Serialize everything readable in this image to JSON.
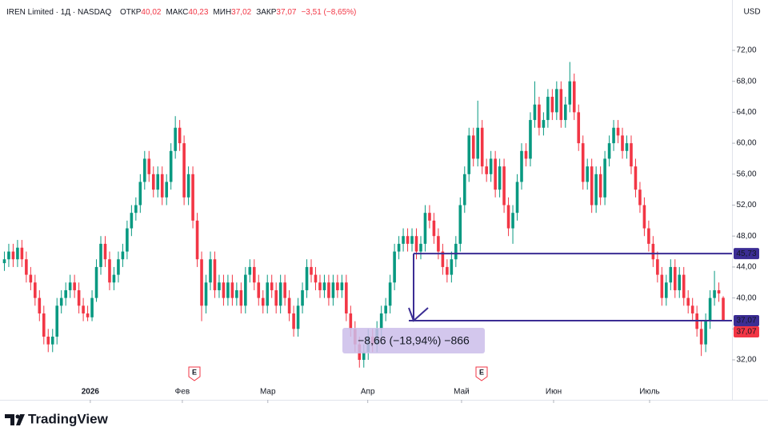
{
  "chart_data": {
    "type": "candlestick",
    "header": {
      "symbol": "IREN Limited · 1Д · NASDAQ",
      "fields": [
        {
          "label": "ОТКР",
          "value": "40,02"
        },
        {
          "label": "МАКС",
          "value": "40,23"
        },
        {
          "label": "МИН",
          "value": "37,02"
        },
        {
          "label": "ЗАКР",
          "value": "37,07"
        }
      ],
      "change": "−3,51 (−8,65%)"
    },
    "currency": "USD",
    "up_color": "#089981",
    "down_color": "#f23645",
    "ylim": [
      29.11,
      78.51
    ],
    "yticks": [
      {
        "value": 32,
        "label": "32,00"
      },
      {
        "value": 36,
        "label": "36,00"
      },
      {
        "value": 40,
        "label": "40,00"
      },
      {
        "value": 44,
        "label": "44,00"
      },
      {
        "value": 48,
        "label": "48,00"
      },
      {
        "value": 52,
        "label": "52,00"
      },
      {
        "value": 56,
        "label": "56,00"
      },
      {
        "value": 60,
        "label": "60,00"
      },
      {
        "value": 64,
        "label": "64,00"
      },
      {
        "value": 68,
        "label": "68,00"
      },
      {
        "value": 72,
        "label": "72,00"
      }
    ],
    "xlim": [
      -1,
      166
    ],
    "xticks": [
      {
        "value": 19.6,
        "label": "2026"
      },
      {
        "value": 40.6,
        "label": "Фев"
      },
      {
        "value": 60.1,
        "label": "Мар"
      },
      {
        "value": 82.9,
        "label": "Апр"
      },
      {
        "value": 104.3,
        "label": "Май"
      },
      {
        "value": 125.3,
        "label": "Июн"
      },
      {
        "value": 147.2,
        "label": "Июль"
      }
    ],
    "grid": false,
    "ohlc": [
      [
        44.5,
        46,
        43.5,
        45
      ],
      [
        45,
        47,
        44,
        46
      ],
      [
        46,
        47,
        44,
        45
      ],
      [
        45,
        47.5,
        44,
        46.5
      ],
      [
        46.5,
        47.5,
        44,
        45
      ],
      [
        45,
        46,
        42,
        43
      ],
      [
        43,
        44,
        41,
        42
      ],
      [
        42,
        43,
        39,
        40
      ],
      [
        40,
        41,
        37,
        38
      ],
      [
        38,
        39,
        34,
        35
      ],
      [
        35,
        36,
        33,
        34
      ],
      [
        34,
        36,
        33,
        35
      ],
      [
        35,
        40,
        34,
        39
      ],
      [
        39,
        41,
        38,
        40
      ],
      [
        40,
        42,
        39,
        41
      ],
      [
        41,
        43,
        40,
        42
      ],
      [
        42,
        43,
        40,
        41
      ],
      [
        41,
        42,
        38,
        39
      ],
      [
        39,
        40,
        37,
        38
      ],
      [
        38,
        39,
        37,
        37.5
      ],
      [
        37.5,
        41,
        37,
        40
      ],
      [
        40,
        45,
        39.5,
        44
      ],
      [
        44,
        48,
        43,
        47
      ],
      [
        47,
        48,
        44,
        45
      ],
      [
        45,
        46,
        41,
        42
      ],
      [
        42,
        44,
        41,
        43
      ],
      [
        43,
        46,
        42,
        45
      ],
      [
        45,
        47,
        44,
        46
      ],
      [
        46,
        50,
        45,
        49
      ],
      [
        49,
        52,
        48,
        51
      ],
      [
        51,
        53,
        50,
        52
      ],
      [
        52,
        56,
        51,
        55
      ],
      [
        55,
        59,
        54,
        58
      ],
      [
        58,
        59,
        55,
        56
      ],
      [
        56,
        57,
        53,
        54
      ],
      [
        54,
        57,
        53,
        56
      ],
      [
        56,
        57,
        52,
        53
      ],
      [
        53,
        56,
        52,
        55
      ],
      [
        55,
        60,
        54,
        59
      ],
      [
        59,
        63.5,
        58,
        62
      ],
      [
        62,
        63,
        59,
        60
      ],
      [
        60,
        61,
        52,
        53
      ],
      [
        53,
        57,
        52,
        56
      ],
      [
        56,
        57,
        49,
        50
      ],
      [
        50,
        51,
        44,
        45
      ],
      [
        45,
        46,
        37,
        39
      ],
      [
        39,
        43,
        38,
        42
      ],
      [
        42,
        46,
        41,
        45
      ],
      [
        45,
        46,
        40,
        41
      ],
      [
        41,
        43,
        40,
        42
      ],
      [
        42,
        43,
        39,
        40
      ],
      [
        40,
        43,
        39,
        42
      ],
      [
        42,
        43,
        39,
        40
      ],
      [
        40,
        42,
        39,
        41
      ],
      [
        41,
        42,
        38,
        39
      ],
      [
        39,
        44,
        38,
        43
      ],
      [
        43,
        45,
        42,
        44
      ],
      [
        44,
        45,
        41,
        42
      ],
      [
        42,
        43,
        39,
        40
      ],
      [
        40,
        41,
        38,
        39
      ],
      [
        39,
        43,
        38,
        42
      ],
      [
        42,
        43,
        40,
        41
      ],
      [
        41,
        42,
        38,
        39
      ],
      [
        39,
        43,
        38,
        42
      ],
      [
        42,
        43,
        39,
        40
      ],
      [
        40,
        41,
        37,
        38
      ],
      [
        38,
        39,
        35,
        36
      ],
      [
        36,
        40,
        35,
        39
      ],
      [
        39,
        42,
        38,
        41
      ],
      [
        41,
        45,
        40,
        44
      ],
      [
        44,
        45,
        42,
        43
      ],
      [
        43,
        44,
        41,
        42
      ],
      [
        42,
        43,
        40,
        41
      ],
      [
        41,
        43,
        40,
        42
      ],
      [
        42,
        43,
        39,
        40
      ],
      [
        40,
        43,
        39,
        42
      ],
      [
        42,
        43,
        40,
        41
      ],
      [
        41,
        43,
        40,
        42
      ],
      [
        42,
        43,
        37,
        38
      ],
      [
        38,
        39,
        35,
        36
      ],
      [
        36,
        37,
        33,
        34
      ],
      [
        34,
        35,
        31,
        32
      ],
      [
        32,
        34,
        31,
        33
      ],
      [
        33,
        36,
        32,
        35
      ],
      [
        35,
        36,
        33,
        34
      ],
      [
        34,
        37,
        33,
        36
      ],
      [
        36,
        39,
        35,
        38
      ],
      [
        38,
        40,
        37,
        39
      ],
      [
        39,
        43,
        38,
        42
      ],
      [
        42,
        47,
        41,
        46
      ],
      [
        46,
        48,
        45,
        47
      ],
      [
        47,
        49,
        46,
        48
      ],
      [
        48,
        49,
        46,
        47
      ],
      [
        47,
        49,
        46,
        48
      ],
      [
        48,
        49,
        45,
        46
      ],
      [
        46,
        48,
        45,
        47
      ],
      [
        47,
        52,
        46,
        51
      ],
      [
        51,
        52,
        49,
        50
      ],
      [
        50,
        51,
        47,
        48
      ],
      [
        48,
        49,
        45,
        46
      ],
      [
        46,
        47,
        43,
        44
      ],
      [
        44,
        45,
        42,
        43
      ],
      [
        43,
        46,
        42,
        45
      ],
      [
        45,
        48,
        44,
        47
      ],
      [
        47,
        53,
        46,
        52
      ],
      [
        52,
        57,
        51,
        56
      ],
      [
        56,
        62,
        55,
        61
      ],
      [
        61,
        62,
        57,
        58
      ],
      [
        58,
        65.5,
        57,
        62
      ],
      [
        62,
        63,
        56,
        57
      ],
      [
        57,
        58,
        55,
        56
      ],
      [
        56,
        59,
        55,
        58
      ],
      [
        58,
        59,
        53,
        54
      ],
      [
        54,
        58,
        53,
        57
      ],
      [
        57,
        58,
        51,
        52
      ],
      [
        52,
        53,
        48,
        49
      ],
      [
        49,
        52,
        47,
        51
      ],
      [
        51,
        56,
        50,
        55
      ],
      [
        55,
        60,
        54,
        59
      ],
      [
        59,
        60,
        57,
        58
      ],
      [
        58,
        64,
        57,
        63
      ],
      [
        63,
        68,
        62,
        65
      ],
      [
        65,
        66,
        61,
        62
      ],
      [
        62,
        64,
        61,
        63
      ],
      [
        63,
        67,
        62,
        66
      ],
      [
        66,
        67,
        63,
        64
      ],
      [
        64,
        68,
        63,
        67
      ],
      [
        67,
        68,
        62,
        63
      ],
      [
        63,
        66,
        62,
        65
      ],
      [
        65,
        70.5,
        64,
        68
      ],
      [
        68,
        69,
        63,
        64
      ],
      [
        64,
        65,
        59,
        60
      ],
      [
        60,
        61,
        54,
        55
      ],
      [
        55,
        58,
        54,
        57
      ],
      [
        57,
        58,
        51,
        52
      ],
      [
        52,
        57,
        51,
        56
      ],
      [
        56,
        57,
        52,
        53
      ],
      [
        53,
        59,
        52,
        58
      ],
      [
        58,
        61,
        57,
        60
      ],
      [
        60,
        63,
        59,
        62
      ],
      [
        62,
        63,
        60,
        61
      ],
      [
        61,
        62,
        58,
        59
      ],
      [
        59,
        61,
        58,
        60
      ],
      [
        60,
        61,
        56,
        57
      ],
      [
        57,
        58,
        53,
        54
      ],
      [
        54,
        55,
        51,
        52
      ],
      [
        52,
        53,
        48,
        49
      ],
      [
        49,
        50,
        46,
        47
      ],
      [
        47,
        48,
        44,
        45
      ],
      [
        45,
        46,
        42,
        43
      ],
      [
        43,
        44,
        39,
        40
      ],
      [
        40,
        43,
        39,
        42
      ],
      [
        42,
        45,
        41,
        44
      ],
      [
        44,
        45,
        40,
        41
      ],
      [
        41,
        44,
        40,
        43
      ],
      [
        43,
        44,
        39,
        40
      ],
      [
        40,
        41,
        38,
        39
      ],
      [
        39,
        40,
        37,
        38
      ],
      [
        38,
        39,
        35,
        36
      ],
      [
        36,
        37,
        32.5,
        34
      ],
      [
        34,
        38,
        33,
        37
      ],
      [
        37,
        41,
        36,
        40
      ],
      [
        40,
        43.5,
        39,
        41
      ],
      [
        41,
        42,
        39.5,
        40.58
      ],
      [
        40.02,
        40.23,
        37.02,
        37.07
      ]
    ],
    "measure": {
      "from": 45.73,
      "to": 37.07,
      "label": "−8,66 (−18,94%) −866",
      "color": "#3b2d94",
      "box_color": "#cbbdea"
    },
    "price_labels": [
      {
        "value": 45.73,
        "label": "45,73",
        "color": "#3b2d94"
      },
      {
        "value": 37.07,
        "label": "37,07",
        "color": "#3b2d94"
      },
      {
        "value": 37.07,
        "label": "37,07",
        "color": "#f23645"
      }
    ],
    "events": [
      "E",
      "E"
    ],
    "brand": "TradingView"
  }
}
